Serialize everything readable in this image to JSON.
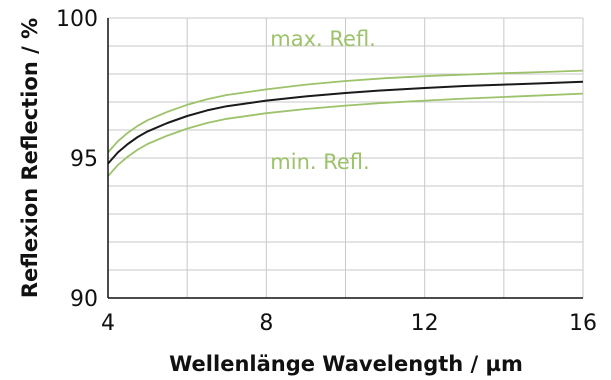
{
  "chart_data": {
    "type": "line",
    "xlabel": "Wellenlänge Wavelength / µm",
    "ylabel": "Reflexion Reflection / %",
    "xlim": [
      4,
      16
    ],
    "ylim": [
      90,
      100
    ],
    "x_ticks": [
      "4",
      "8",
      "12",
      "16"
    ],
    "y_ticks": [
      "90",
      "95",
      "100"
    ],
    "grid": true,
    "legend": "none",
    "colors": {
      "typical": "#1a1a1a",
      "limits": "#9cc26a",
      "grid": "#c8c8c8",
      "axis": "#111111"
    },
    "annotations": [
      {
        "text": "max. Refl.",
        "x": 8.1,
        "y": 99.0
      },
      {
        "text": "min. Refl.",
        "x": 8.1,
        "y": 94.6
      }
    ],
    "series": [
      {
        "x": [
          4.0,
          4.25,
          4.5,
          4.75,
          5.0,
          5.5,
          6.0,
          6.5,
          7.0,
          8.0,
          9.0,
          10.0,
          11.0,
          12.0,
          13.0,
          14.0,
          15.0,
          16.0
        ],
        "values": [
          95.2,
          95.6,
          95.9,
          96.15,
          96.35,
          96.65,
          96.9,
          97.1,
          97.25,
          97.45,
          97.62,
          97.75,
          97.85,
          97.92,
          97.98,
          98.03,
          98.07,
          98.12
        ]
      },
      {
        "x": [
          4.0,
          4.25,
          4.5,
          4.75,
          5.0,
          5.5,
          6.0,
          6.5,
          7.0,
          8.0,
          9.0,
          10.0,
          11.0,
          12.0,
          13.0,
          14.0,
          15.0,
          16.0
        ],
        "values": [
          94.8,
          95.2,
          95.5,
          95.75,
          95.95,
          96.25,
          96.5,
          96.7,
          96.85,
          97.05,
          97.2,
          97.32,
          97.42,
          97.5,
          97.57,
          97.62,
          97.67,
          97.72
        ]
      },
      {
        "x": [
          4.0,
          4.25,
          4.5,
          4.75,
          5.0,
          5.5,
          6.0,
          6.5,
          7.0,
          8.0,
          9.0,
          10.0,
          11.0,
          12.0,
          13.0,
          14.0,
          15.0,
          16.0
        ],
        "values": [
          94.35,
          94.75,
          95.05,
          95.3,
          95.5,
          95.8,
          96.05,
          96.25,
          96.4,
          96.6,
          96.75,
          96.87,
          96.97,
          97.05,
          97.12,
          97.18,
          97.24,
          97.3
        ]
      }
    ]
  }
}
